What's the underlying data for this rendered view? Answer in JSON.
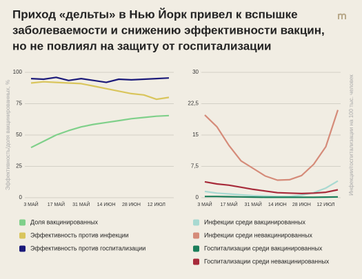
{
  "title": [
    "Приход «дельты» в Нью Йорк привел к вспышке",
    "заболеваемости и снижению эффективности вакцин,",
    "но не повлиял на защиту от госпитализации"
  ],
  "chart_data": [
    {
      "type": "line",
      "ylabel": "Эффективность/доля вакцинированных, %",
      "categories": [
        "3 МАЙ",
        null,
        "17 МАЙ",
        null,
        "31 МАЙ",
        null,
        "14 ИЮН",
        null,
        "28 ИЮН",
        null,
        "12 ИЮЛ",
        null
      ],
      "ylim": [
        0,
        100
      ],
      "yticks": [
        0,
        25,
        50,
        75,
        100
      ],
      "grid": true,
      "series": [
        {
          "name": "Доля вакцинированных",
          "color": "#7fd08a",
          "values": [
            40,
            45,
            50,
            53.5,
            56.5,
            58.5,
            60,
            61.5,
            63,
            64,
            65,
            65.5
          ]
        },
        {
          "name": "Эффективность против инфекции",
          "color": "#d9c55c",
          "values": [
            91.5,
            92.5,
            92,
            91.5,
            91,
            89,
            87,
            85,
            83,
            82,
            78.5,
            80
          ]
        },
        {
          "name": "Эффективность против госпитализации",
          "color": "#1b1a7a",
          "values": [
            95,
            94.5,
            96,
            93.5,
            95,
            93.5,
            92,
            94.5,
            94,
            94.5,
            95,
            95.5
          ]
        }
      ]
    },
    {
      "type": "line",
      "ylabel": "Инфекции/госпитализации на 100 тыс. человек",
      "categories": [
        "3 МАЙ",
        null,
        "17 МАЙ",
        null,
        "31 МАЙ",
        null,
        "14 ИЮН",
        null,
        "28 ИЮН",
        null,
        "12 ИЮЛ",
        null
      ],
      "ylim": [
        0,
        30
      ],
      "yticks": [
        0,
        {
          "value": 7.5,
          "label": "7,5"
        },
        15,
        {
          "value": 22.5,
          "label": "22,5"
        },
        30
      ],
      "grid": true,
      "series": [
        {
          "name": "Инфекции среди вакцинированных",
          "color": "#a8d9d1",
          "values": [
            1.5,
            1.1,
            0.9,
            0.7,
            0.5,
            0.4,
            0.3,
            0.3,
            0.6,
            1.2,
            2.3,
            4.0
          ]
        },
        {
          "name": "Инфекции среди невакцинированных",
          "color": "#d58b79",
          "values": [
            19.8,
            17,
            12.5,
            8.8,
            7,
            5.2,
            4.2,
            4.3,
            5.3,
            8,
            12.2,
            21
          ]
        },
        {
          "name": "Госпитализации среди вакцинированных",
          "color": "#1b7e5a",
          "values": [
            0.3,
            0.3,
            0.25,
            0.2,
            0.15,
            0.1,
            0.1,
            0.1,
            0.1,
            0.1,
            0.15,
            0.2
          ]
        },
        {
          "name": "Госпитализации среди невакцинированных",
          "color": "#a72a3a",
          "values": [
            3.8,
            3.3,
            3.0,
            2.5,
            2.0,
            1.6,
            1.2,
            1.1,
            1.0,
            1.1,
            1.3,
            1.9
          ]
        }
      ]
    }
  ]
}
